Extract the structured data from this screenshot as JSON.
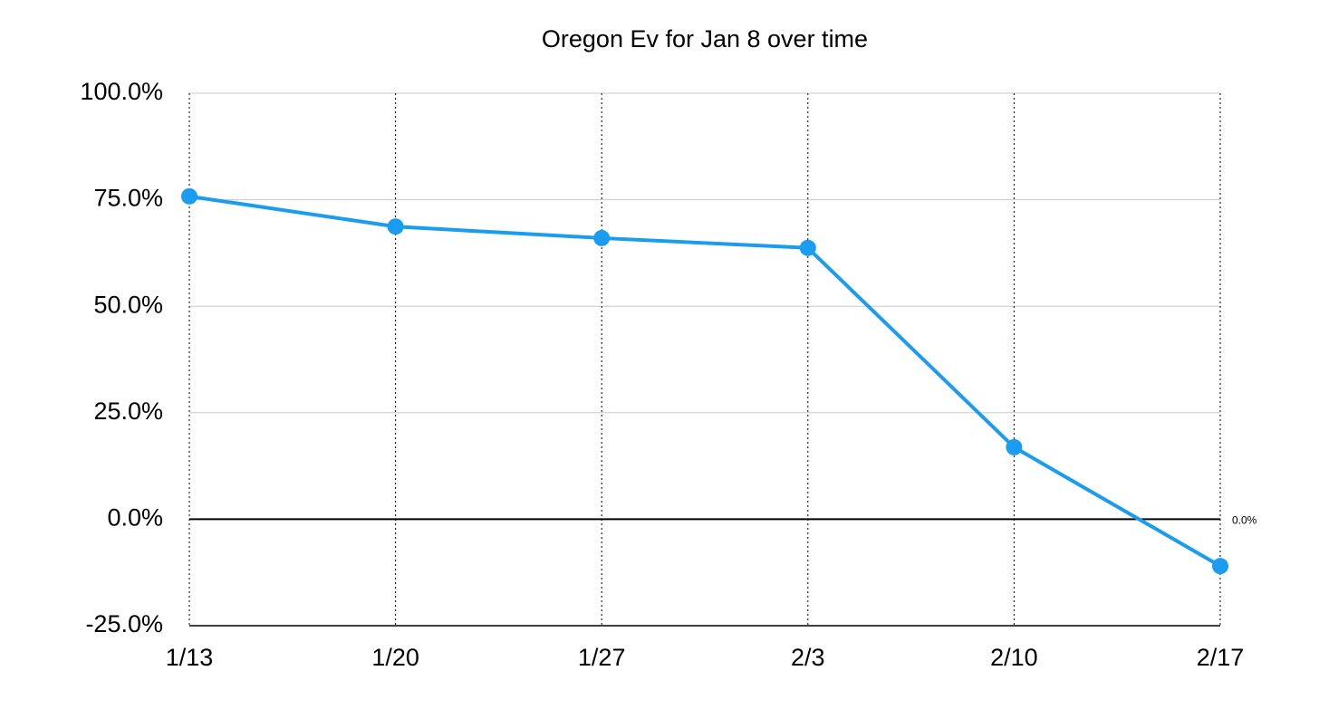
{
  "chart_data": {
    "type": "line",
    "title": "Oregon Ev for Jan 8 over time",
    "categories": [
      "1/13",
      "1/20",
      "1/27",
      "2/3",
      "2/10",
      "2/17"
    ],
    "series": [
      {
        "name": "Oregon Ev",
        "color": "#1a9cf0",
        "values": [
          75.8,
          68.7,
          66.0,
          63.7,
          16.9,
          -11.0
        ]
      }
    ],
    "ylim": [
      -25,
      100
    ],
    "yticks": [
      {
        "value": -25,
        "label": "-25.0%"
      },
      {
        "value": 0,
        "label": "0.0%"
      },
      {
        "value": 25,
        "label": "25.0%"
      },
      {
        "value": 50,
        "label": "50.0%"
      },
      {
        "value": 75,
        "label": "75.0%"
      },
      {
        "value": 100,
        "label": "100.0%"
      }
    ],
    "grid": true,
    "reference_line": {
      "value": 0,
      "label": "0.0%"
    }
  }
}
